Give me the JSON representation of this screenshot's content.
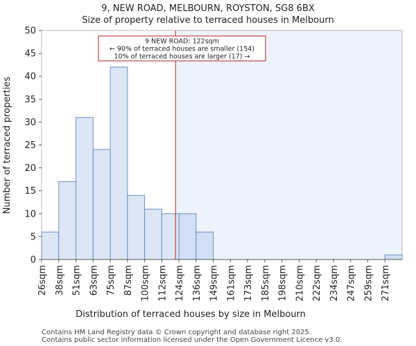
{
  "chart_data": {
    "type": "bar",
    "title": "9, NEW ROAD, MELBOURN, ROYSTON, SG8 6BX",
    "subtitle": "Size of property relative to terraced houses in Melbourn",
    "xlabel": "Distribution of terraced houses by size in Melbourn",
    "ylabel": "Number of terraced properties",
    "categories": [
      "26sqm",
      "38sqm",
      "51sqm",
      "63sqm",
      "75sqm",
      "87sqm",
      "100sqm",
      "112sqm",
      "124sqm",
      "136sqm",
      "149sqm",
      "161sqm",
      "173sqm",
      "185sqm",
      "198sqm",
      "210sqm",
      "222sqm",
      "234sqm",
      "247sqm",
      "259sqm",
      "271sqm"
    ],
    "values": [
      6,
      17,
      31,
      24,
      42,
      14,
      11,
      10,
      10,
      6,
      0,
      0,
      0,
      0,
      0,
      0,
      0,
      0,
      0,
      0,
      1
    ],
    "ylim": [
      0,
      50
    ],
    "yticks": [
      0,
      5,
      10,
      15,
      20,
      25,
      30,
      35,
      40,
      45,
      50
    ],
    "marker": {
      "position_bin": 7.8,
      "color": "#b22222",
      "lines": [
        "9 NEW ROAD: 122sqm",
        "← 90% of terraced houses are smaller (154)",
        "10% of terraced houses are larger (17) →"
      ]
    },
    "shaded_from_bin": 7.8,
    "shade_color": "#eef2fb"
  },
  "footer": {
    "line1": "Contains HM Land Registry data © Crown copyright and database right 2025.",
    "line2": "Contains public sector information licensed under the Open Government Licence v3.0."
  }
}
